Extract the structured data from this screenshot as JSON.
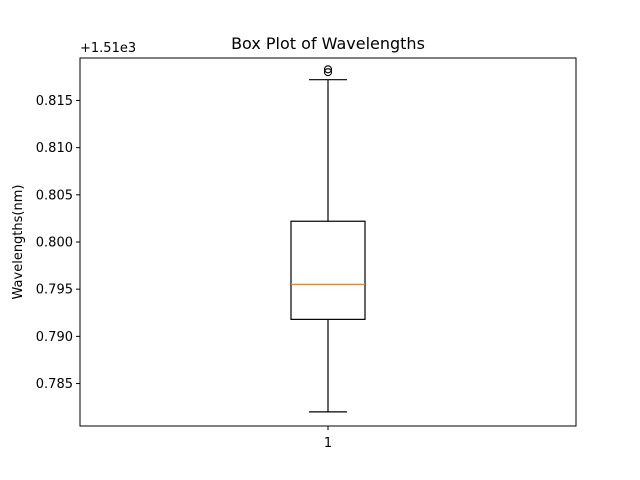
{
  "chart_data": {
    "type": "box",
    "title": "Box Plot of Wavelengths",
    "xlabel": "",
    "ylabel": "Wavelengths(nm)",
    "offset_label": "+1.51e3",
    "offset": 1510,
    "categories": [
      "1"
    ],
    "boxes": [
      {
        "category": "1",
        "whisker_low": 0.782,
        "q1": 0.7918,
        "median": 0.7955,
        "q3": 0.8022,
        "whisker_high": 0.8172,
        "outliers": [
          0.818,
          0.8183
        ]
      }
    ],
    "ylim": [
      0.7805,
      0.8195
    ],
    "yticks": [
      0.785,
      0.79,
      0.795,
      0.8,
      0.805,
      0.81,
      0.815
    ],
    "ytick_labels": [
      "0.785",
      "0.790",
      "0.795",
      "0.800",
      "0.805",
      "0.810",
      "0.815"
    ],
    "grid": false,
    "colors": {
      "box": "#000000",
      "median": "#ff7f0e"
    }
  }
}
